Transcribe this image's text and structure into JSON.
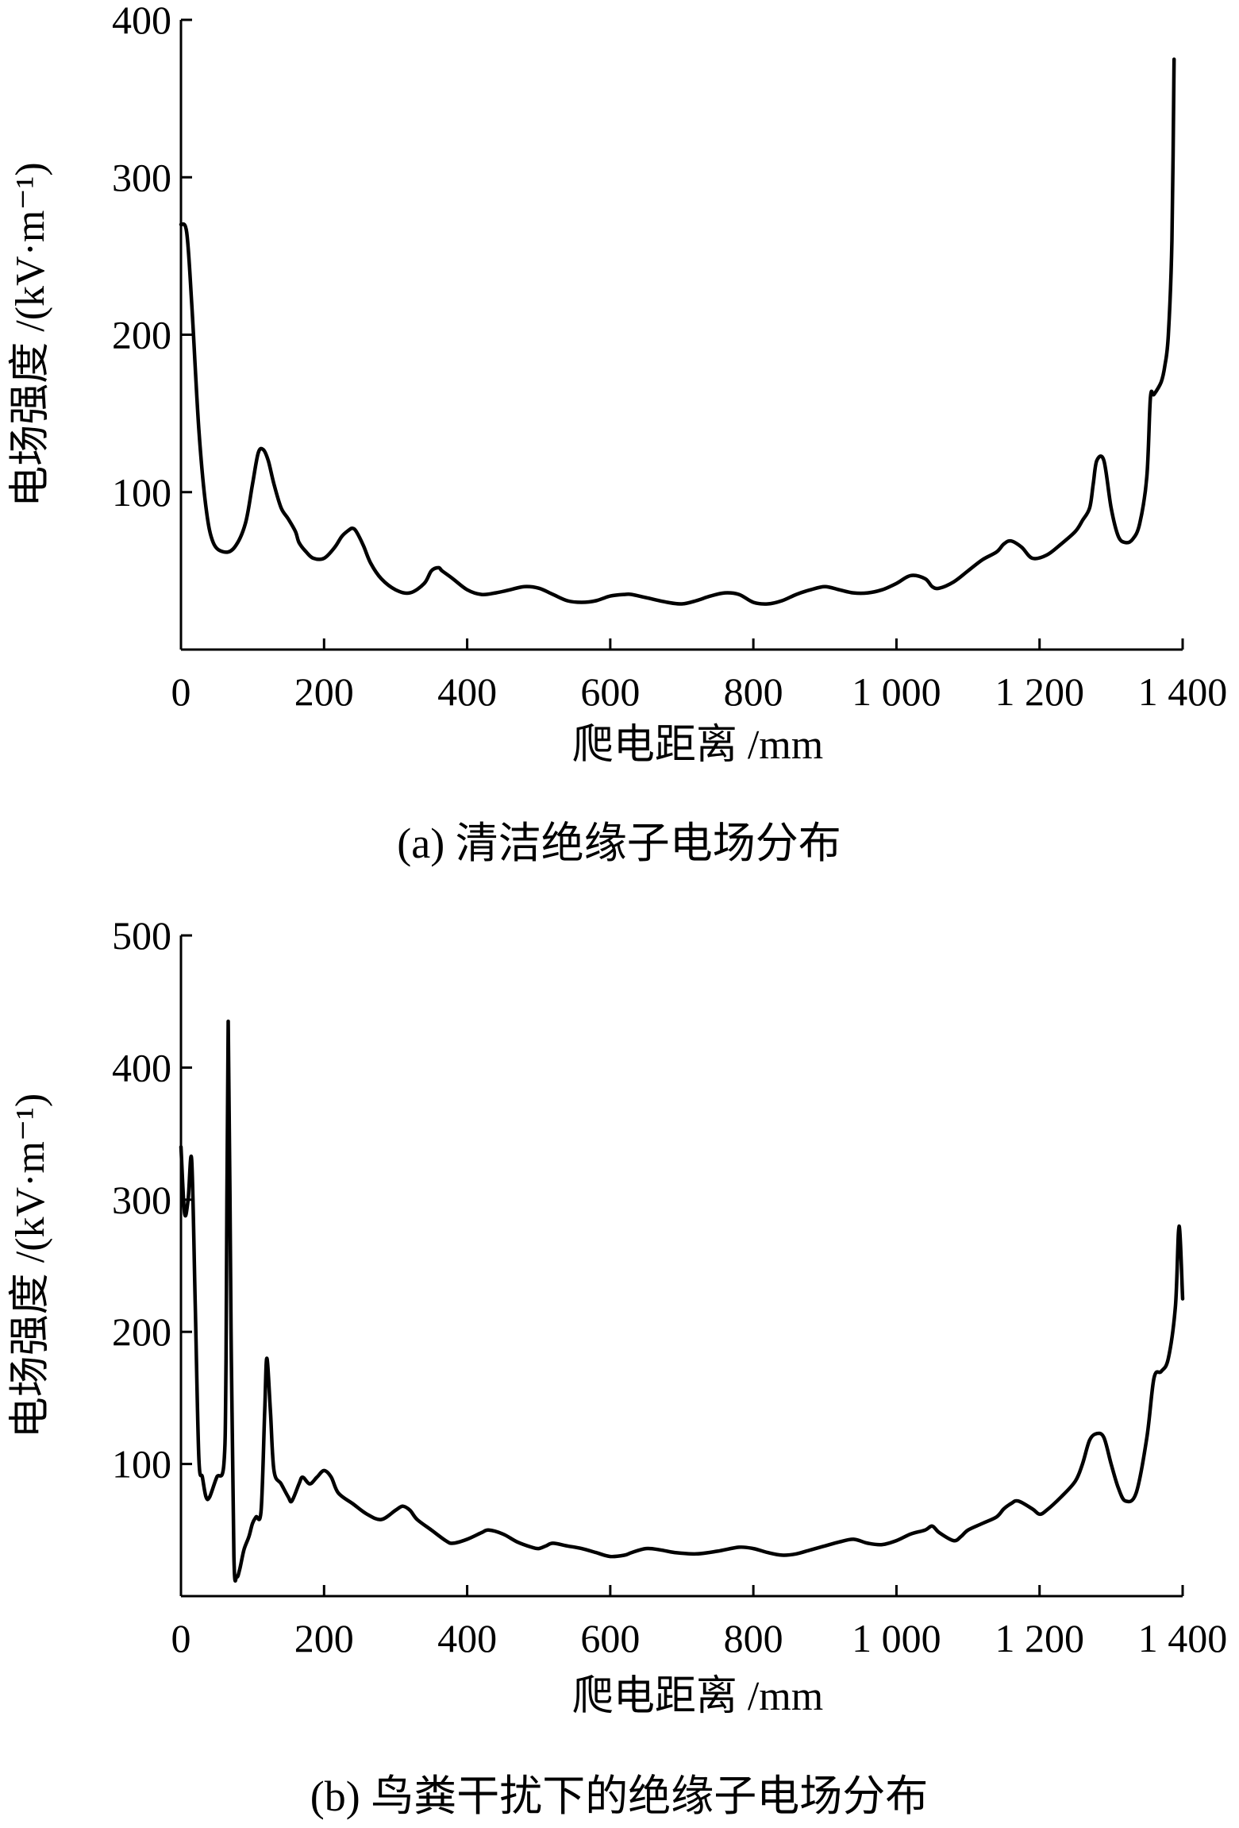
{
  "chart_data": [
    {
      "type": "line",
      "caption": "(a) 清洁绝缘子电场分布",
      "xlabel": "爬电距离 /mm",
      "ylabel": "电场强度 /(kV·m⁻¹)",
      "xlim": [
        0,
        1400
      ],
      "ylim": [
        0,
        400
      ],
      "x_ticks": [
        "0",
        "200",
        "400",
        "600",
        "800",
        "1 000",
        "1 200",
        "1 400"
      ],
      "y_ticks": [
        "100",
        "200",
        "300",
        "400"
      ],
      "grid": false,
      "series": [
        {
          "x": [
            0,
            8,
            15,
            25,
            35,
            45,
            60,
            75,
            90,
            100,
            108,
            115,
            122,
            130,
            140,
            150,
            160,
            165,
            175,
            185,
            200,
            215,
            225,
            235,
            240,
            245,
            255,
            265,
            280,
            300,
            320,
            340,
            350,
            360,
            365,
            380,
            400,
            420,
            440,
            460,
            480,
            500,
            520,
            540,
            560,
            580,
            600,
            620,
            630,
            650,
            680,
            700,
            720,
            740,
            760,
            780,
            800,
            820,
            840,
            860,
            880,
            900,
            920,
            940,
            960,
            980,
            1000,
            1020,
            1040,
            1050,
            1060,
            1080,
            1100,
            1120,
            1140,
            1150,
            1160,
            1175,
            1190,
            1210,
            1230,
            1250,
            1260,
            1270,
            1275,
            1280,
            1290,
            1300,
            1310,
            1320,
            1330,
            1340,
            1350,
            1355,
            1360,
            1370,
            1375,
            1380,
            1385,
            1388
          ],
          "y": [
            270,
            265,
            220,
            140,
            90,
            68,
            62,
            65,
            80,
            105,
            125,
            127,
            120,
            105,
            90,
            83,
            75,
            68,
            62,
            58,
            58,
            65,
            72,
            76,
            77,
            75,
            66,
            55,
            45,
            38,
            36,
            42,
            50,
            52,
            50,
            45,
            38,
            35,
            36,
            38,
            40,
            39,
            35,
            31,
            30,
            31,
            34,
            35,
            35,
            33,
            30,
            29,
            31,
            34,
            36,
            35,
            30,
            29,
            31,
            35,
            38,
            40,
            38,
            36,
            36,
            38,
            42,
            47,
            45,
            40,
            39,
            43,
            50,
            57,
            62,
            67,
            69,
            65,
            58,
            60,
            67,
            75,
            82,
            90,
            105,
            120,
            120,
            90,
            72,
            68,
            70,
            80,
            110,
            160,
            162,
            170,
            180,
            200,
            260,
            375
          ]
        }
      ]
    },
    {
      "type": "line",
      "caption": "(b) 鸟粪干扰下的绝缘子电场分布",
      "xlabel": "爬电距离 /mm",
      "ylabel": "电场强度 /(kV·m⁻¹)",
      "xlim": [
        0,
        1400
      ],
      "ylim": [
        0,
        500
      ],
      "x_ticks": [
        "0",
        "200",
        "400",
        "600",
        "800",
        "1 000",
        "1 200",
        "1 400"
      ],
      "y_ticks": [
        "100",
        "200",
        "300",
        "400",
        "500"
      ],
      "grid": false,
      "series": [
        {
          "x": [
            0,
            5,
            10,
            15,
            20,
            25,
            30,
            35,
            40,
            50,
            60,
            63,
            66,
            70,
            74,
            78,
            82,
            88,
            95,
            100,
            105,
            112,
            117,
            120,
            125,
            130,
            140,
            150,
            155,
            165,
            170,
            180,
            190,
            200,
            210,
            220,
            240,
            260,
            280,
            300,
            310,
            320,
            330,
            350,
            370,
            380,
            400,
            420,
            430,
            450,
            470,
            490,
            500,
            510,
            520,
            540,
            560,
            580,
            600,
            620,
            630,
            650,
            670,
            690,
            720,
            750,
            780,
            800,
            820,
            840,
            860,
            880,
            900,
            920,
            940,
            960,
            980,
            1000,
            1020,
            1040,
            1050,
            1060,
            1080,
            1090,
            1100,
            1120,
            1140,
            1150,
            1160,
            1170,
            1190,
            1200,
            1210,
            1230,
            1250,
            1260,
            1270,
            1280,
            1290,
            1300,
            1310,
            1320,
            1335,
            1350,
            1360,
            1370,
            1380,
            1390,
            1395,
            1400
          ],
          "y": [
            340,
            290,
            300,
            330,
            220,
            105,
            90,
            75,
            75,
            90,
            100,
            180,
            435,
            200,
            30,
            15,
            20,
            35,
            45,
            55,
            60,
            65,
            140,
            180,
            140,
            95,
            85,
            75,
            72,
            85,
            90,
            85,
            90,
            95,
            90,
            78,
            70,
            62,
            58,
            65,
            68,
            65,
            58,
            50,
            42,
            40,
            43,
            48,
            50,
            47,
            41,
            37,
            36,
            38,
            40,
            38,
            36,
            33,
            30,
            31,
            33,
            36,
            35,
            33,
            32,
            34,
            37,
            36,
            33,
            31,
            32,
            35,
            38,
            41,
            43,
            40,
            39,
            42,
            47,
            50,
            53,
            48,
            42,
            45,
            50,
            55,
            60,
            66,
            70,
            72,
            66,
            62,
            65,
            75,
            87,
            100,
            118,
            123,
            120,
            100,
            82,
            72,
            78,
            120,
            165,
            170,
            180,
            220,
            280,
            225
          ]
        }
      ]
    }
  ]
}
